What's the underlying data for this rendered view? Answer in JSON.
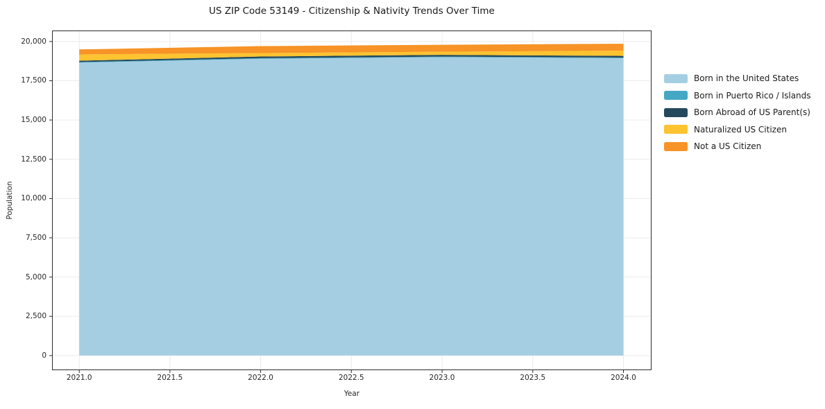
{
  "chart": {
    "title": "US ZIP Code 53149 - Citizenship & Nativity Trends Over Time",
    "xlabel": "Year",
    "ylabel": "Population"
  },
  "chart_data": {
    "type": "area",
    "stacked": true,
    "title": "US ZIP Code 53149 - Citizenship & Nativity Trends Over Time",
    "xlabel": "Year",
    "ylabel": "Population",
    "x": [
      2021,
      2022,
      2023,
      2024
    ],
    "series": [
      {
        "name": "Born in the United States",
        "color": "#a5cee3",
        "values": [
          18650,
          18900,
          19000,
          18940
        ]
      },
      {
        "name": "Born in Puerto Rico / Islands",
        "color": "#46a7c5",
        "values": [
          40,
          40,
          40,
          40
        ]
      },
      {
        "name": "Born Abroad of US Parent(s)",
        "color": "#25495c",
        "values": [
          85,
          105,
          110,
          105
        ]
      },
      {
        "name": "Naturalized US Citizen",
        "color": "#fdc330",
        "values": [
          400,
          220,
          200,
          330
        ]
      },
      {
        "name": "Not a US Citizen",
        "color": "#f79327",
        "values": [
          320,
          440,
          440,
          440
        ]
      }
    ],
    "x_ticks": [
      2021.0,
      2021.5,
      2022.0,
      2022.5,
      2023.0,
      2023.5,
      2024.0
    ],
    "x_tick_labels": [
      "2021.0",
      "2021.5",
      "2022.0",
      "2022.5",
      "2023.0",
      "2023.5",
      "2024.0"
    ],
    "y_ticks": [
      0,
      2500,
      5000,
      7500,
      10000,
      12500,
      15000,
      17500,
      20000
    ],
    "y_tick_labels": [
      "0",
      "2,500",
      "5,000",
      "7,500",
      "10,000",
      "12,500",
      "15,000",
      "17,500",
      "20,000"
    ],
    "xlim": [
      2020.85,
      2024.155
    ],
    "ylim": [
      -930,
      20700
    ],
    "grid": true,
    "legend_position": "right-outside",
    "colors": {
      "grid": "#ebebeb",
      "spine": "#2b2b2b",
      "background": "#ffffff"
    }
  }
}
